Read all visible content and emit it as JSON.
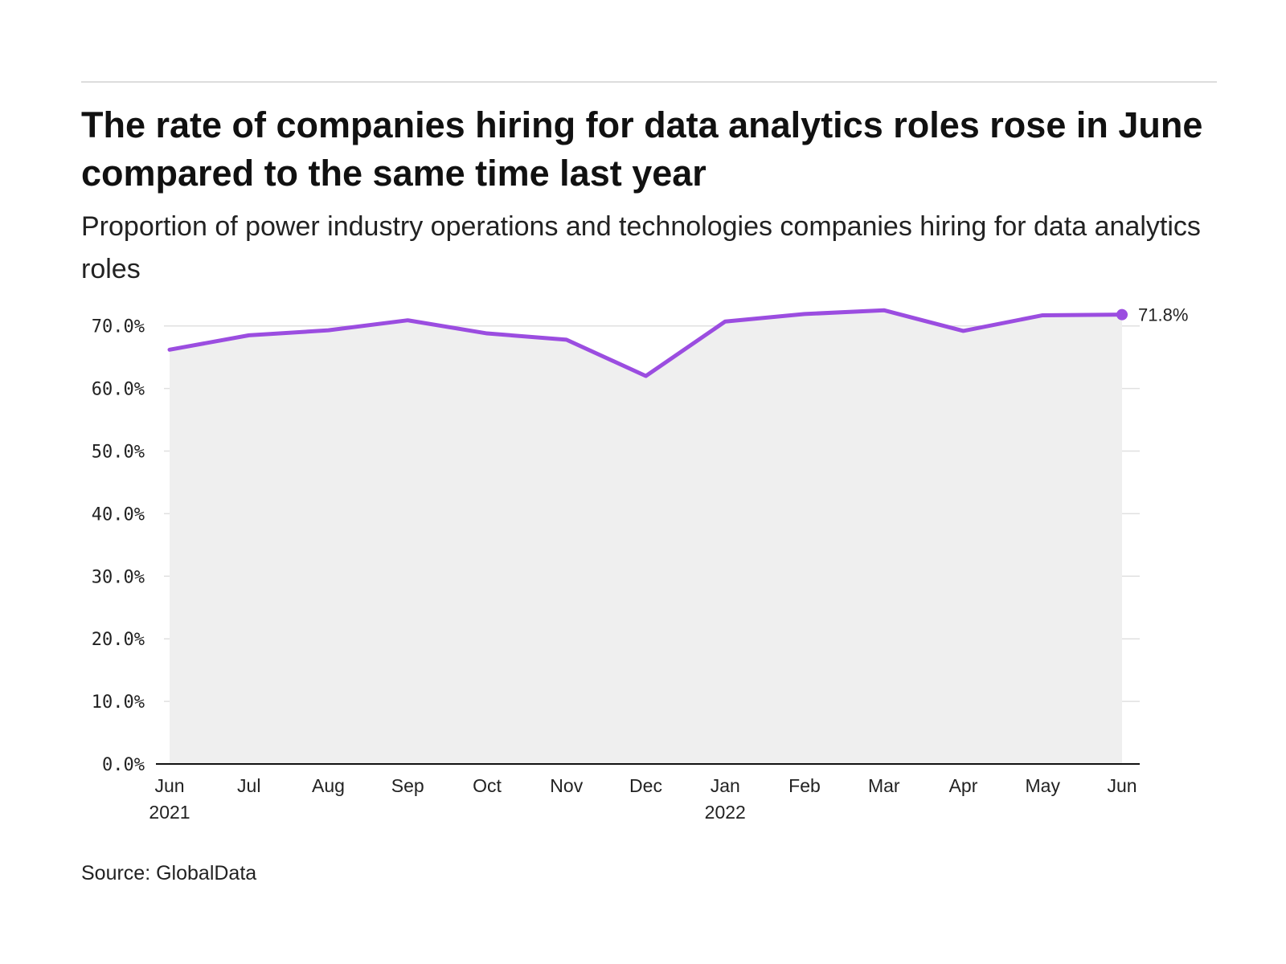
{
  "header": {
    "title": "The rate of companies hiring for data analytics roles rose in June compared to the same time last year",
    "subtitle": "Proportion of power industry operations and technologies companies hiring for data analytics roles"
  },
  "footer": {
    "source": "Source: GlobalData"
  },
  "colors": {
    "line": "#9b4de0",
    "area": "#efefef",
    "grid": "#e0e0e0",
    "axis": "#111111"
  },
  "chart_data": {
    "type": "line",
    "title": "The rate of companies hiring for data analytics roles rose in June compared to the same time last year",
    "subtitle": "Proportion of power industry operations and technologies companies hiring for data analytics roles",
    "categories": [
      "Jun 2021",
      "Jul 2021",
      "Aug 2021",
      "Sep 2021",
      "Oct 2021",
      "Nov 2021",
      "Dec 2021",
      "Jan 2022",
      "Feb 2022",
      "Mar 2022",
      "Apr 2022",
      "May 2022",
      "Jun 2022"
    ],
    "x_tick_labels": [
      {
        "month": "Jun",
        "year": "2021"
      },
      {
        "month": "Jul",
        "year": ""
      },
      {
        "month": "Aug",
        "year": ""
      },
      {
        "month": "Sep",
        "year": ""
      },
      {
        "month": "Oct",
        "year": ""
      },
      {
        "month": "Nov",
        "year": ""
      },
      {
        "month": "Dec",
        "year": ""
      },
      {
        "month": "Jan",
        "year": "2022"
      },
      {
        "month": "Feb",
        "year": ""
      },
      {
        "month": "Mar",
        "year": ""
      },
      {
        "month": "Apr",
        "year": ""
      },
      {
        "month": "May",
        "year": ""
      },
      {
        "month": "Jun",
        "year": ""
      }
    ],
    "series": [
      {
        "values": [
          66.2,
          68.5,
          69.3,
          70.9,
          68.8,
          67.8,
          62.0,
          70.7,
          71.9,
          72.5,
          69.2,
          71.7,
          71.8
        ]
      }
    ],
    "ylim": [
      0,
      70
    ],
    "y_ticks": [
      0,
      10,
      20,
      30,
      40,
      50,
      60,
      70
    ],
    "y_tick_labels": [
      "0.0%",
      "10.0%",
      "20.0%",
      "30.0%",
      "40.0%",
      "50.0%",
      "60.0%",
      "70.0%"
    ],
    "end_label": "71.8%",
    "area_fill": true,
    "grid": true,
    "legend": "none",
    "xlabel": "",
    "ylabel": ""
  }
}
